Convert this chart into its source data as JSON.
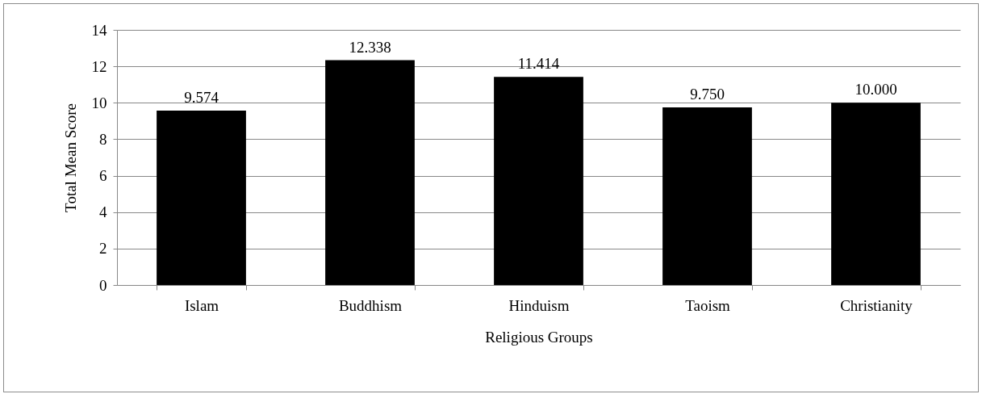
{
  "chart_data": {
    "type": "bar",
    "xlabel": "Religious Groups",
    "ylabel": "Total Mean Score",
    "categories": [
      "Islam",
      "Buddhism",
      "Hinduism",
      "Taoism",
      "Christianity"
    ],
    "values": [
      9.574,
      12.338,
      11.414,
      9.75,
      10.0
    ],
    "value_labels": [
      "9.574",
      "12.338",
      "11.414",
      "9.750",
      "10.000"
    ],
    "color": "#000000",
    "ylim": [
      0,
      14
    ],
    "yticks": [
      0,
      2,
      4,
      6,
      8,
      10,
      12,
      14
    ],
    "grid": "y"
  }
}
